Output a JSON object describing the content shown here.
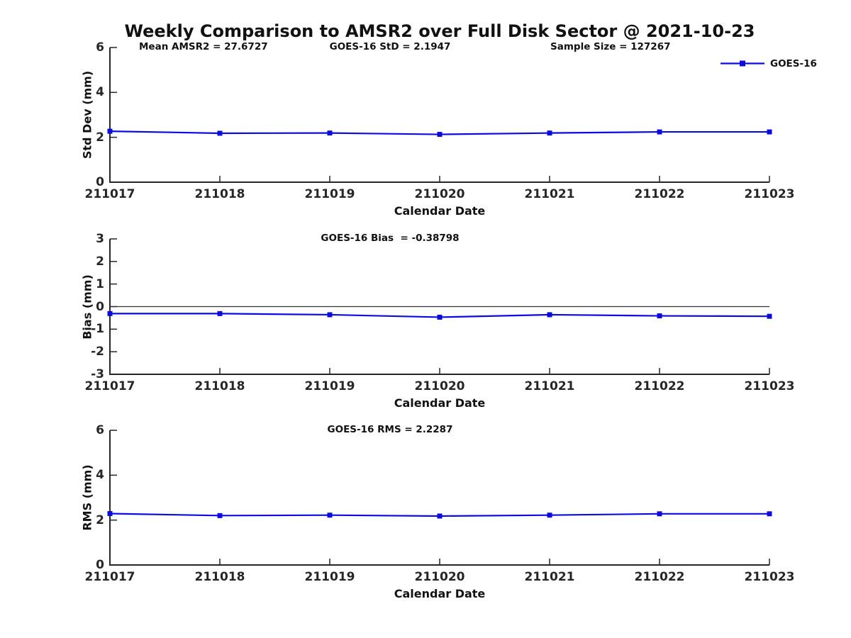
{
  "title": "Weekly Comparison to AMSR2 over Full Disk Sector @ 2021-10-23",
  "colors": {
    "series": "#0b0be0",
    "axis": "#262626",
    "zero_line": "#333333",
    "text": "#111111"
  },
  "legend": {
    "label": "GOES-16",
    "position": "top-right"
  },
  "chart_data": [
    {
      "type": "line",
      "name": "std-dev",
      "annotations": [
        "Mean AMSR2 = 27.6727",
        "GOES-16 StD = 2.1947",
        "Sample Size = 127267"
      ],
      "ylabel": "Std Dev (mm)",
      "xlabel": "Calendar Date",
      "ylim": [
        0,
        6
      ],
      "yticks": [
        0,
        2,
        4,
        6
      ],
      "categories": [
        "211017",
        "211018",
        "211019",
        "211020",
        "211021",
        "211022",
        "211023"
      ],
      "series": [
        {
          "name": "GOES-16",
          "values": [
            2.27,
            2.18,
            2.19,
            2.13,
            2.19,
            2.24,
            2.24
          ]
        }
      ],
      "grid": false,
      "legend_entries": [
        "GOES-16"
      ]
    },
    {
      "type": "line",
      "name": "bias",
      "title": "GOES-16 Bias  = -0.38798",
      "ylabel": "Bias (mm)",
      "xlabel": "Calendar Date",
      "ylim": [
        -3,
        3
      ],
      "yticks": [
        3,
        2,
        1,
        0,
        -1,
        -2,
        -3
      ],
      "zero_line": true,
      "categories": [
        "211017",
        "211018",
        "211019",
        "211020",
        "211021",
        "211022",
        "211023"
      ],
      "series": [
        {
          "name": "GOES-16",
          "values": [
            -0.31,
            -0.31,
            -0.36,
            -0.47,
            -0.36,
            -0.41,
            -0.43
          ]
        }
      ],
      "grid": false
    },
    {
      "type": "line",
      "name": "rms",
      "title": "GOES-16 RMS = 2.2287",
      "ylabel": "RMS (mm)",
      "xlabel": "Calendar Date",
      "ylim": [
        0,
        6
      ],
      "yticks": [
        0,
        2,
        4,
        6
      ],
      "categories": [
        "211017",
        "211018",
        "211019",
        "211020",
        "211021",
        "211022",
        "211023"
      ],
      "series": [
        {
          "name": "GOES-16",
          "values": [
            2.29,
            2.2,
            2.22,
            2.18,
            2.22,
            2.28,
            2.28
          ]
        }
      ],
      "grid": false
    }
  ]
}
